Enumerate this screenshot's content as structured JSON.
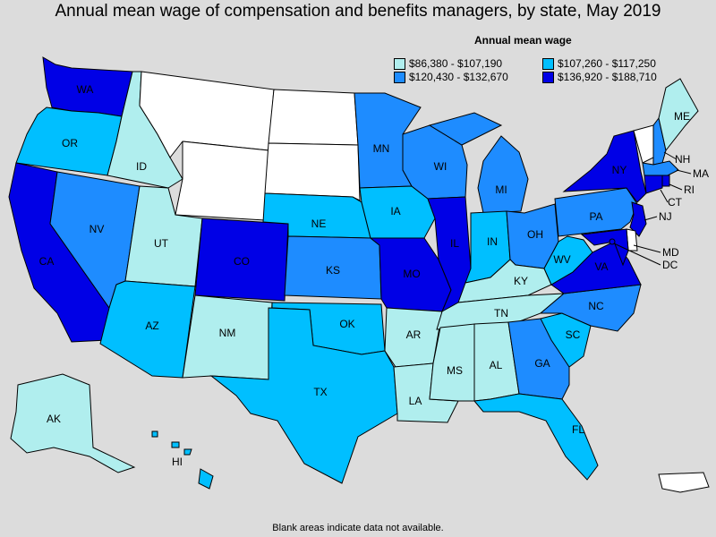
{
  "title": "Annual mean wage of compensation and benefits managers, by state, May 2019",
  "legend": {
    "title": "Annual mean wage",
    "items": [
      {
        "label": "$86,380 - $107,190",
        "color": "#b0eeee"
      },
      {
        "label": "$107,260 - $117,250",
        "color": "#00bfff"
      },
      {
        "label": "$120,430 - $132,670",
        "color": "#1e8cff"
      },
      {
        "label": "$136,920 - $188,710",
        "color": "#0000e6"
      }
    ]
  },
  "no_data_color": "#ffffff",
  "footnote": "Blank areas indicate data not available.",
  "states": [
    {
      "code": "WA",
      "tier": 4
    },
    {
      "code": "OR",
      "tier": 2
    },
    {
      "code": "CA",
      "tier": 4
    },
    {
      "code": "ID",
      "tier": 1
    },
    {
      "code": "NV",
      "tier": 3
    },
    {
      "code": "MT",
      "tier": 0
    },
    {
      "code": "WY",
      "tier": 0
    },
    {
      "code": "UT",
      "tier": 1
    },
    {
      "code": "AZ",
      "tier": 2
    },
    {
      "code": "CO",
      "tier": 4
    },
    {
      "code": "NM",
      "tier": 1
    },
    {
      "code": "ND",
      "tier": 0
    },
    {
      "code": "SD",
      "tier": 0
    },
    {
      "code": "NE",
      "tier": 2
    },
    {
      "code": "KS",
      "tier": 3
    },
    {
      "code": "OK",
      "tier": 2
    },
    {
      "code": "TX",
      "tier": 2
    },
    {
      "code": "MN",
      "tier": 3
    },
    {
      "code": "IA",
      "tier": 2
    },
    {
      "code": "MO",
      "tier": 4
    },
    {
      "code": "AR",
      "tier": 1
    },
    {
      "code": "LA",
      "tier": 1
    },
    {
      "code": "WI",
      "tier": 3
    },
    {
      "code": "IL",
      "tier": 4
    },
    {
      "code": "MI",
      "tier": 3
    },
    {
      "code": "IN",
      "tier": 2
    },
    {
      "code": "OH",
      "tier": 3
    },
    {
      "code": "KY",
      "tier": 1
    },
    {
      "code": "TN",
      "tier": 1
    },
    {
      "code": "MS",
      "tier": 1
    },
    {
      "code": "AL",
      "tier": 1
    },
    {
      "code": "GA",
      "tier": 3
    },
    {
      "code": "FL",
      "tier": 2
    },
    {
      "code": "SC",
      "tier": 2
    },
    {
      "code": "NC",
      "tier": 3
    },
    {
      "code": "VA",
      "tier": 4
    },
    {
      "code": "WV",
      "tier": 2
    },
    {
      "code": "PA",
      "tier": 3
    },
    {
      "code": "NY",
      "tier": 4
    },
    {
      "code": "VT",
      "tier": 0
    },
    {
      "code": "NH",
      "tier": 3
    },
    {
      "code": "ME",
      "tier": 1
    },
    {
      "code": "MA",
      "tier": 3
    },
    {
      "code": "RI",
      "tier": 4
    },
    {
      "code": "CT",
      "tier": 4
    },
    {
      "code": "NJ",
      "tier": 4
    },
    {
      "code": "DE",
      "tier": 0
    },
    {
      "code": "MD",
      "tier": 4
    },
    {
      "code": "DC",
      "tier": 4
    },
    {
      "code": "AK",
      "tier": 1
    },
    {
      "code": "HI",
      "tier": 2
    },
    {
      "code": "PR",
      "tier": 0
    }
  ]
}
